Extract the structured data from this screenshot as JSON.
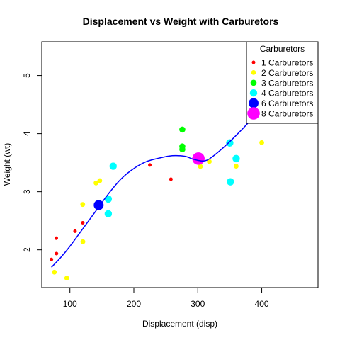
{
  "chart_data": {
    "type": "scatter",
    "title": "Displacement vs Weight with Carburetors",
    "xlabel": "Displacement (disp)",
    "ylabel": "Weight (wt)",
    "xlim": [
      56,
      488
    ],
    "ylim": [
      1.35,
      5.58
    ],
    "xticks": [
      100,
      200,
      300,
      400
    ],
    "yticks": [
      2,
      3,
      4,
      5
    ],
    "legend": {
      "title": "Carburetors",
      "position": "top-right",
      "entries": [
        {
          "label": "1 Carburetors",
          "color": "#ff0000",
          "carb": 1
        },
        {
          "label": "2 Carburetors",
          "color": "#ffff00",
          "carb": 2
        },
        {
          "label": "3 Carburetors",
          "color": "#00ff00",
          "carb": 3
        },
        {
          "label": "4 Carburetors",
          "color": "#00ffff",
          "carb": 4
        },
        {
          "label": "6 Carburetors",
          "color": "#0000ff",
          "carb": 6
        },
        {
          "label": "8 Carburetors",
          "color": "#ff00ff",
          "carb": 8
        }
      ]
    },
    "series": [
      {
        "name": "1 Carburetors",
        "carb": 1,
        "color": "#ff0000",
        "points": [
          [
            71.1,
            1.835
          ],
          [
            75.7,
            1.615
          ],
          [
            78.7,
            2.2
          ],
          [
            79.0,
            1.935
          ],
          [
            108.0,
            2.32
          ],
          [
            120.1,
            2.465
          ],
          [
            225.0,
            3.46
          ],
          [
            258.0,
            3.215
          ]
        ]
      },
      {
        "name": "2 Carburetors",
        "carb": 2,
        "color": "#ffff00",
        "points": [
          [
            75.7,
            1.615
          ],
          [
            95.1,
            1.513
          ],
          [
            120.3,
            2.14
          ],
          [
            120.0,
            2.78
          ],
          [
            140.8,
            3.15
          ],
          [
            146.7,
            3.19
          ],
          [
            304.0,
            3.435
          ],
          [
            318.0,
            3.52
          ],
          [
            360.0,
            3.44
          ],
          [
            400.0,
            3.845
          ]
        ]
      },
      {
        "name": "3 Carburetors",
        "carb": 3,
        "color": "#00ff00",
        "points": [
          [
            275.8,
            4.07
          ],
          [
            275.8,
            3.73
          ],
          [
            275.8,
            3.78
          ]
        ]
      },
      {
        "name": "4 Carburetors",
        "carb": 4,
        "color": "#00ffff",
        "points": [
          [
            160.0,
            2.62
          ],
          [
            160.0,
            2.875
          ],
          [
            167.6,
            3.44
          ],
          [
            350.0,
            3.84
          ],
          [
            351.0,
            3.17
          ],
          [
            360.0,
            3.57
          ]
        ]
      },
      {
        "name": "6 Carburetors",
        "carb": 6,
        "color": "#0000ff",
        "points": [
          [
            145.0,
            2.77
          ]
        ]
      },
      {
        "name": "8 Carburetors",
        "carb": 8,
        "color": "#ff00ff",
        "points": [
          [
            301.0,
            3.57
          ]
        ]
      }
    ],
    "trend_line": {
      "name": "smooth fit",
      "color": "#0000ff",
      "points": [
        [
          71.1,
          1.7
        ],
        [
          85,
          1.86
        ],
        [
          100,
          2.06
        ],
        [
          120,
          2.36
        ],
        [
          140,
          2.66
        ],
        [
          160,
          2.96
        ],
        [
          180,
          3.22
        ],
        [
          200,
          3.4
        ],
        [
          220,
          3.52
        ],
        [
          240,
          3.58
        ],
        [
          260,
          3.62
        ],
        [
          280,
          3.61
        ],
        [
          290,
          3.57
        ],
        [
          300,
          3.54
        ],
        [
          310,
          3.53
        ],
        [
          320,
          3.58
        ],
        [
          340,
          3.76
        ],
        [
          360,
          3.97
        ],
        [
          380,
          4.2
        ],
        [
          400,
          4.45
        ],
        [
          420,
          4.71
        ],
        [
          440,
          5.0
        ],
        [
          460,
          5.3
        ],
        [
          472,
          5.47
        ]
      ]
    }
  }
}
